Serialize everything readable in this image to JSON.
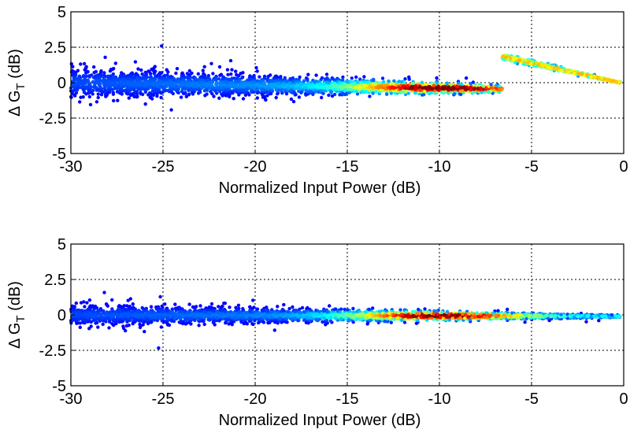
{
  "chart_data": [
    {
      "type": "scatter",
      "title": "",
      "xlabel": "Normalized Input Power (dB)",
      "ylabel": "Δ G",
      "ylabel_subscript": "T",
      "ylabel_unit": "(dB)",
      "xlim": [
        -30,
        0
      ],
      "ylim": [
        -5,
        5
      ],
      "xticks": [
        -30,
        -25,
        -20,
        -15,
        -10,
        -5,
        0
      ],
      "yticks": [
        -5,
        -2.5,
        0,
        2.5,
        5
      ],
      "xtick_labels": [
        "-30",
        "-25",
        "-20",
        "-15",
        "-10",
        "-5",
        "0"
      ],
      "ytick_labels": [
        "-5",
        "-2.5",
        "0",
        "2.5",
        "5"
      ],
      "grid": true,
      "density_colormap": "jet",
      "clusters": [
        {
          "x_range": [
            -30,
            -6.6
          ],
          "center_start": 0.0,
          "center_end": -0.45,
          "spread_start": 1.1,
          "spread_end": 0.25
        },
        {
          "x_range": [
            -6.6,
            -0.2
          ],
          "center_start": 1.85,
          "center_end": 0.0,
          "spread_start": 0.2,
          "spread_end": 0.05
        }
      ],
      "density_peak_x": -10
    },
    {
      "type": "scatter",
      "title": "",
      "xlabel": "Normalized Input Power (dB)",
      "ylabel": "Δ G",
      "ylabel_subscript": "T",
      "ylabel_unit": "(dB)",
      "xlim": [
        -30,
        0
      ],
      "ylim": [
        -5,
        5
      ],
      "xticks": [
        -30,
        -25,
        -20,
        -15,
        -10,
        -5,
        0
      ],
      "yticks": [
        -5,
        -2.5,
        0,
        2.5,
        5
      ],
      "xtick_labels": [
        "-30",
        "-25",
        "-20",
        "-15",
        "-10",
        "-5",
        "0"
      ],
      "ytick_labels": [
        "-5",
        "-2.5",
        "0",
        "2.5",
        "5"
      ],
      "grid": true,
      "density_colormap": "jet",
      "clusters": [
        {
          "x_range": [
            -30,
            -0.2
          ],
          "center_start": 0.0,
          "center_end": -0.1,
          "spread_start": 0.75,
          "spread_end": 0.08
        }
      ],
      "density_peak_x": -10
    }
  ]
}
